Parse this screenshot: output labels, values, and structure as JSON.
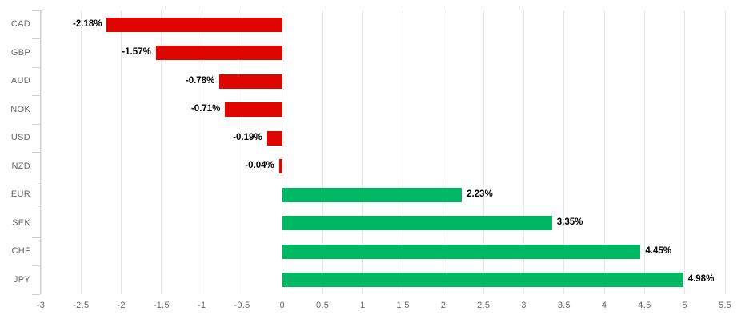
{
  "chart_data": {
    "type": "bar",
    "orientation": "horizontal",
    "title": "",
    "xlabel": "",
    "ylabel": "",
    "categories": [
      "CAD",
      "GBP",
      "AUD",
      "NOK",
      "USD",
      "NZD",
      "EUR",
      "SEK",
      "CHF",
      "JPY"
    ],
    "values": [
      -2.18,
      -1.57,
      -0.78,
      -0.71,
      -0.19,
      -0.04,
      2.23,
      3.35,
      4.45,
      4.98
    ],
    "value_labels": [
      "-2.18%",
      "-1.57%",
      "-0.78%",
      "-0.71%",
      "-0.19%",
      "-0.04%",
      "2.23%",
      "3.35%",
      "4.45%",
      "4.98%"
    ],
    "xlim": [
      -3,
      5.5
    ],
    "x_ticks": [
      -3,
      -2.5,
      -2,
      -1.5,
      -1,
      -0.5,
      0,
      0.5,
      1,
      1.5,
      2,
      2.5,
      3,
      3.5,
      4,
      4.5,
      5,
      5.5
    ],
    "x_tick_labels": [
      "-3",
      "-2.5",
      "-2",
      "-1.5",
      "-1",
      "-0.5",
      "0",
      "0.5",
      "1",
      "1.5",
      "2",
      "2.5",
      "3",
      "3.5",
      "4",
      "4.5",
      "5",
      "5.5"
    ],
    "grid": true,
    "legend": false,
    "value_label_position": "outside-end",
    "colors": {
      "positive": "#00b863",
      "negative": "#e00600",
      "gridline": "#e6e6e6",
      "axis": "#ccd0d6",
      "category_label": "#63666c",
      "tick_label": "#63666c",
      "value_label": "#000000",
      "background": "#ffffff"
    }
  }
}
